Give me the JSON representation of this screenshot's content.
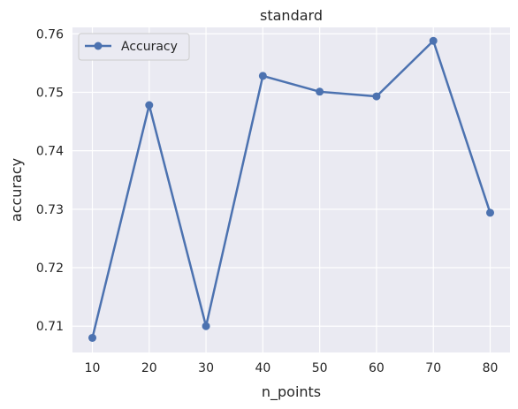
{
  "chart_data": {
    "type": "line",
    "title": "standard",
    "xlabel": "n_points",
    "ylabel": "accuracy",
    "x": [
      10,
      20,
      30,
      40,
      50,
      60,
      70,
      80
    ],
    "series": [
      {
        "name": "Accuracy",
        "values": [
          0.708,
          0.7478,
          0.71,
          0.7528,
          0.7501,
          0.7493,
          0.7588,
          0.7294
        ],
        "color": "#4c72b0",
        "marker": "circle"
      }
    ],
    "xticks": [
      "10",
      "20",
      "30",
      "40",
      "50",
      "60",
      "70",
      "80"
    ],
    "yticks": [
      "0.71",
      "0.72",
      "0.73",
      "0.74",
      "0.75",
      "0.76"
    ],
    "xlim": [
      6.5,
      83.5
    ],
    "ylim": [
      0.7055,
      0.7611
    ],
    "grid": true,
    "legend_position": "top-left",
    "background_color": "#eaeaf2",
    "grid_color": "#ffffff"
  }
}
